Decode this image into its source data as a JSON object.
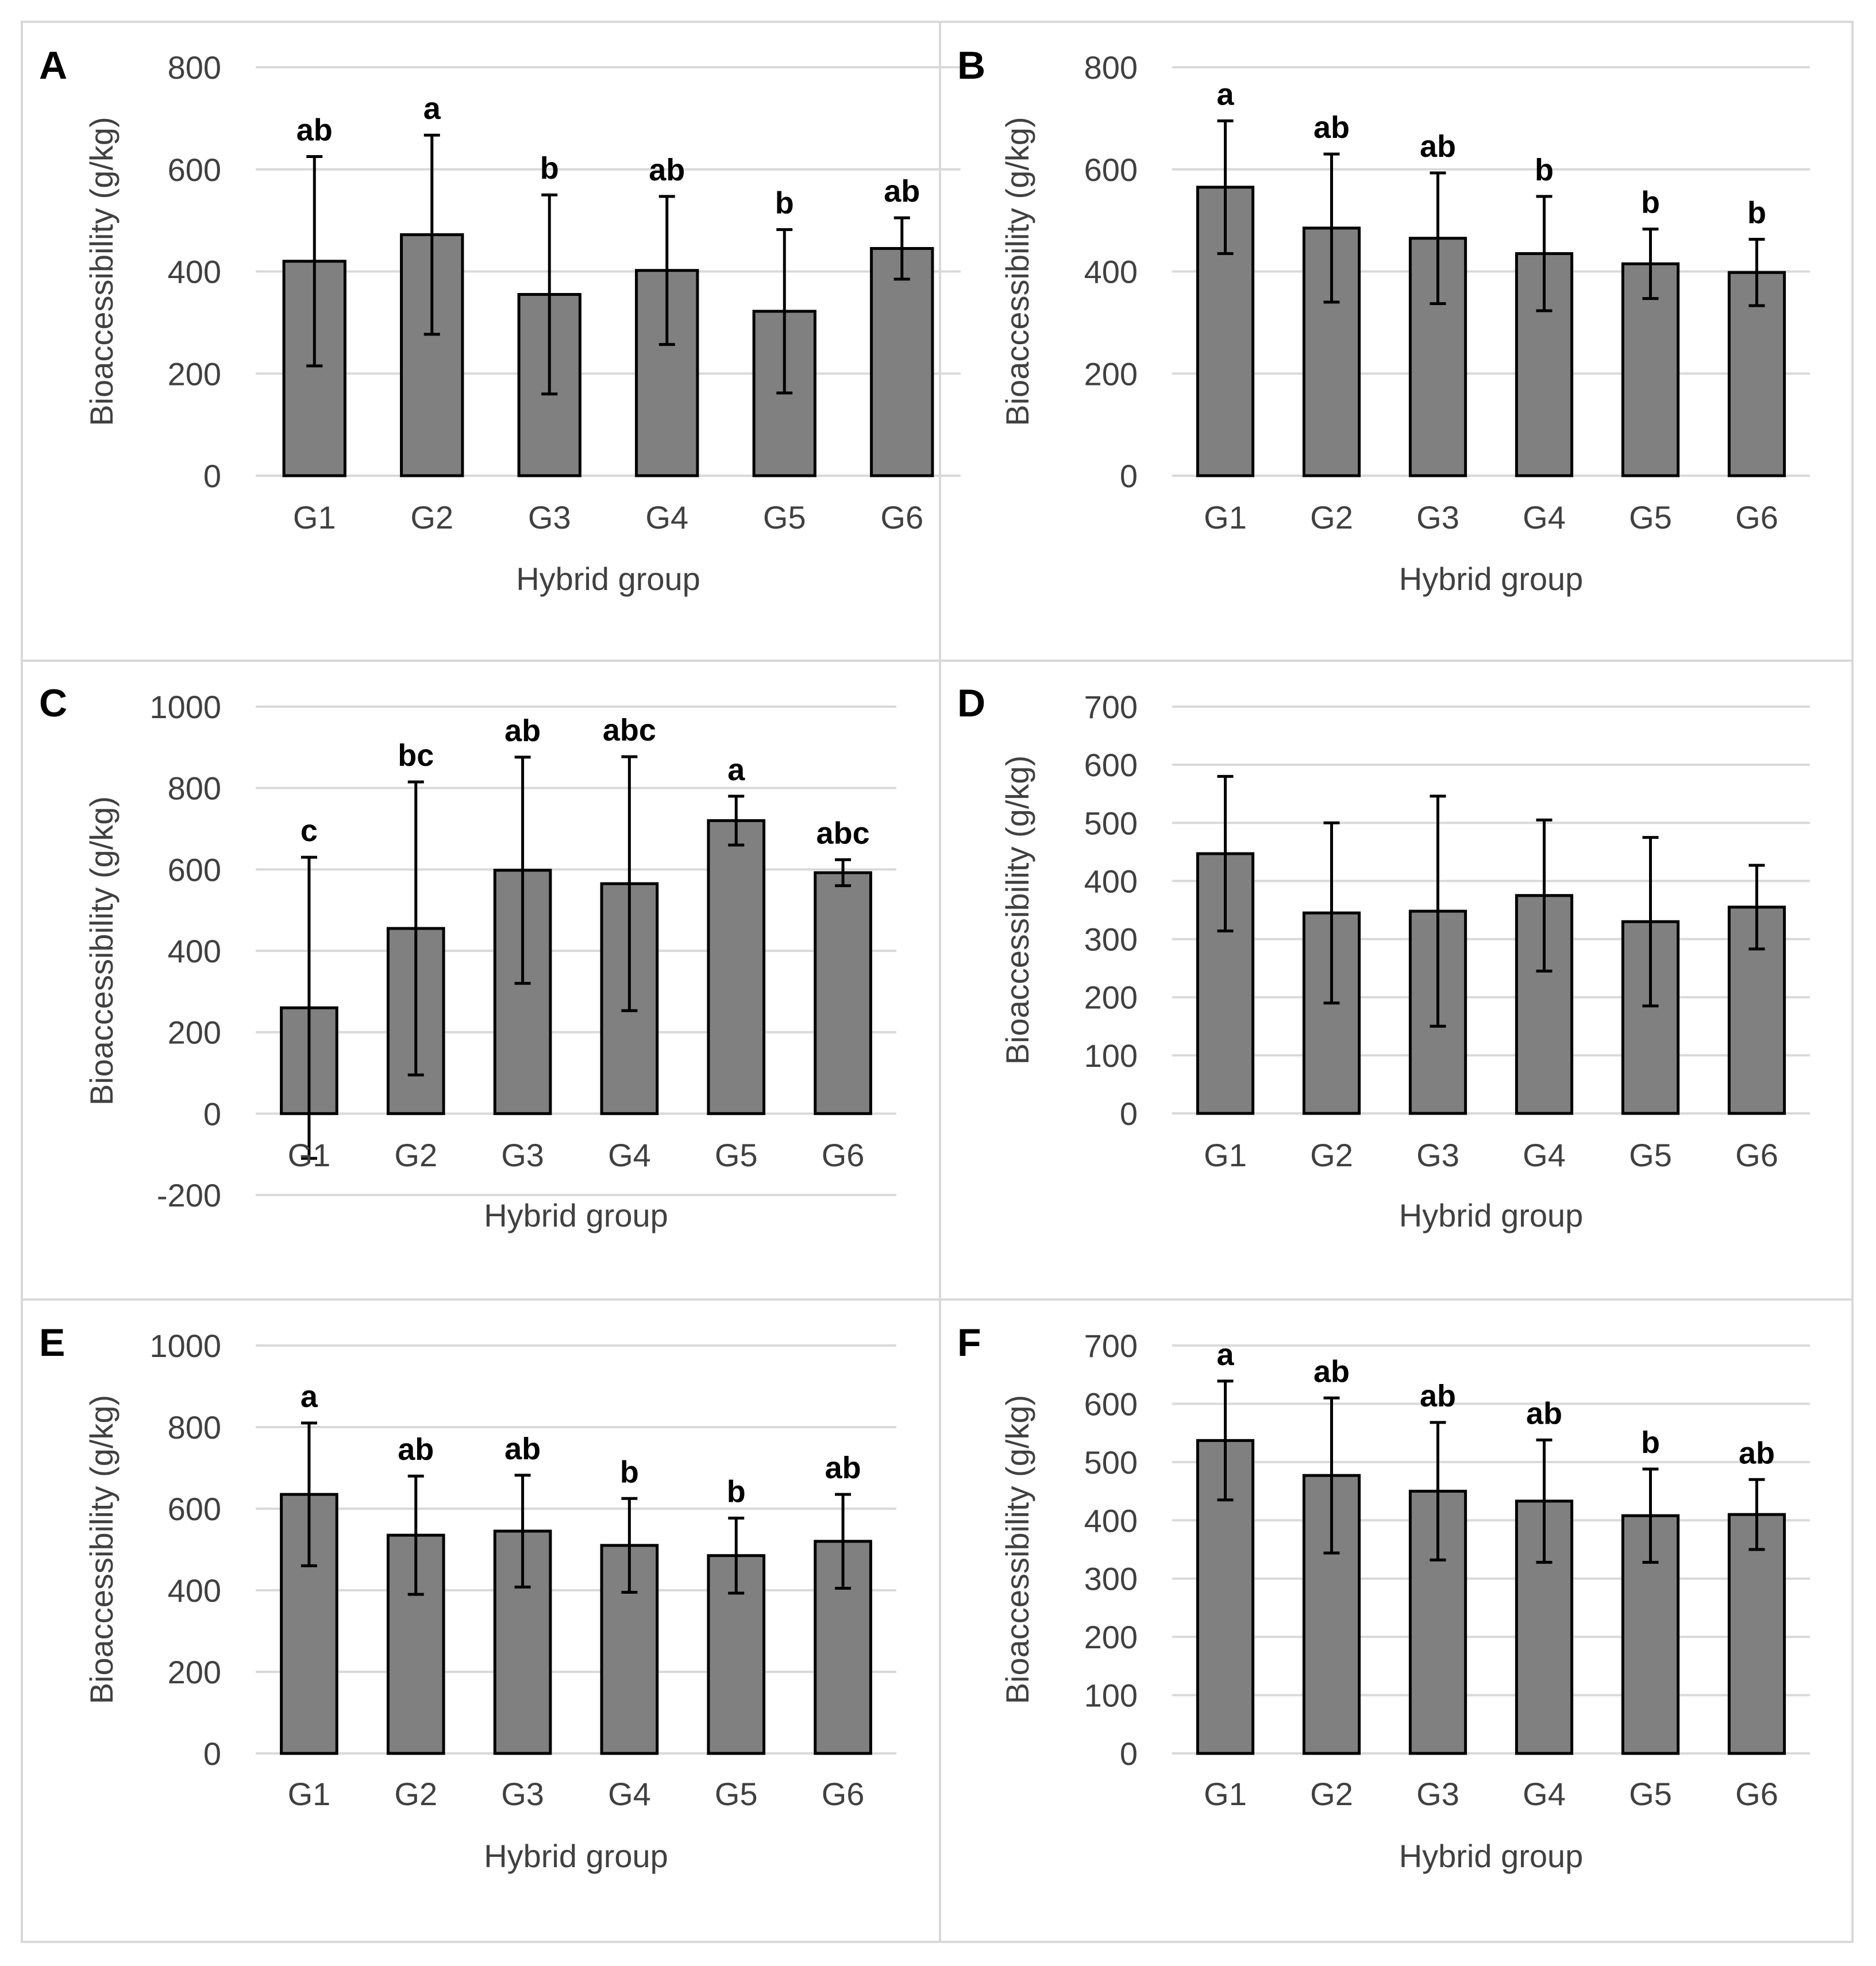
{
  "colors": {
    "bar_fill": "#808080",
    "bar_stroke": "#000000",
    "grid": "#d9d9d9",
    "panel_border": "#d9d9d9",
    "text": "#404040"
  },
  "chart_data": [
    {
      "type": "bar",
      "panel": "A",
      "categories": [
        "G1",
        "G2",
        "G3",
        "G4",
        "G5",
        "G6"
      ],
      "values": [
        420,
        472,
        355,
        402,
        322,
        445
      ],
      "errors": [
        205,
        195,
        195,
        145,
        160,
        60
      ],
      "significance": [
        "ab",
        "a",
        "b",
        "ab",
        "b",
        "ab"
      ],
      "xlabel": "Hybrid group",
      "ylabel": "Bioaccessibility (g/kg)",
      "ylim": [
        0,
        800
      ],
      "yticks": [
        0,
        200,
        400,
        600,
        800
      ],
      "grid": true
    },
    {
      "type": "bar",
      "panel": "B",
      "categories": [
        "G1",
        "G2",
        "G3",
        "G4",
        "G5",
        "G6"
      ],
      "values": [
        565,
        485,
        465,
        435,
        415,
        398
      ],
      "errors": [
        130,
        145,
        128,
        112,
        68,
        65
      ],
      "significance": [
        "a",
        "ab",
        "ab",
        "b",
        "b",
        "b"
      ],
      "xlabel": "Hybrid group",
      "ylabel": "Bioaccessibility (g/kg)",
      "ylim": [
        0,
        800
      ],
      "yticks": [
        0,
        200,
        400,
        600,
        800
      ],
      "grid": true
    },
    {
      "type": "bar",
      "panel": "C",
      "categories": [
        "G1",
        "G2",
        "G3",
        "G4",
        "G5",
        "G6"
      ],
      "values": [
        260,
        455,
        598,
        565,
        720,
        592
      ],
      "errors": [
        370,
        360,
        278,
        312,
        60,
        32
      ],
      "significance": [
        "c",
        "bc",
        "ab",
        "abc",
        "a",
        "abc"
      ],
      "xlabel": "Hybrid group",
      "ylabel": "Bioaccessibility (g/kg)",
      "ylim": [
        -200,
        1000
      ],
      "yticks": [
        -200,
        0,
        200,
        400,
        600,
        800,
        1000
      ],
      "grid": true
    },
    {
      "type": "bar",
      "panel": "D",
      "categories": [
        "G1",
        "G2",
        "G3",
        "G4",
        "G5",
        "G6"
      ],
      "values": [
        447,
        345,
        348,
        375,
        330,
        355
      ],
      "errors": [
        133,
        155,
        198,
        130,
        145,
        72
      ],
      "significance": [],
      "xlabel": "Hybrid group",
      "ylabel": "Bioaccessibility (g/kg)",
      "ylim": [
        0,
        700
      ],
      "yticks": [
        0,
        100,
        200,
        300,
        400,
        500,
        600,
        700
      ],
      "grid": true
    },
    {
      "type": "bar",
      "panel": "E",
      "categories": [
        "G1",
        "G2",
        "G3",
        "G4",
        "G5",
        "G6"
      ],
      "values": [
        635,
        535,
        545,
        510,
        485,
        520
      ],
      "errors": [
        175,
        145,
        137,
        115,
        92,
        115
      ],
      "significance": [
        "a",
        "ab",
        "ab",
        "b",
        "b",
        "ab"
      ],
      "xlabel": "Hybrid group",
      "ylabel": "Bioaccessibility (g/kg)",
      "ylim": [
        0,
        1000
      ],
      "yticks": [
        0,
        200,
        400,
        600,
        800,
        1000
      ],
      "grid": true
    },
    {
      "type": "bar",
      "panel": "F",
      "categories": [
        "G1",
        "G2",
        "G3",
        "G4",
        "G5",
        "G6"
      ],
      "values": [
        537,
        477,
        450,
        433,
        408,
        410
      ],
      "errors": [
        102,
        133,
        118,
        105,
        80,
        60
      ],
      "significance": [
        "a",
        "ab",
        "ab",
        "ab",
        "b",
        "ab"
      ],
      "xlabel": "Hybrid group",
      "ylabel": "Bioaccessibility (g/kg)",
      "ylim": [
        0,
        700
      ],
      "yticks": [
        0,
        100,
        200,
        300,
        400,
        500,
        600,
        700
      ],
      "grid": true
    }
  ]
}
